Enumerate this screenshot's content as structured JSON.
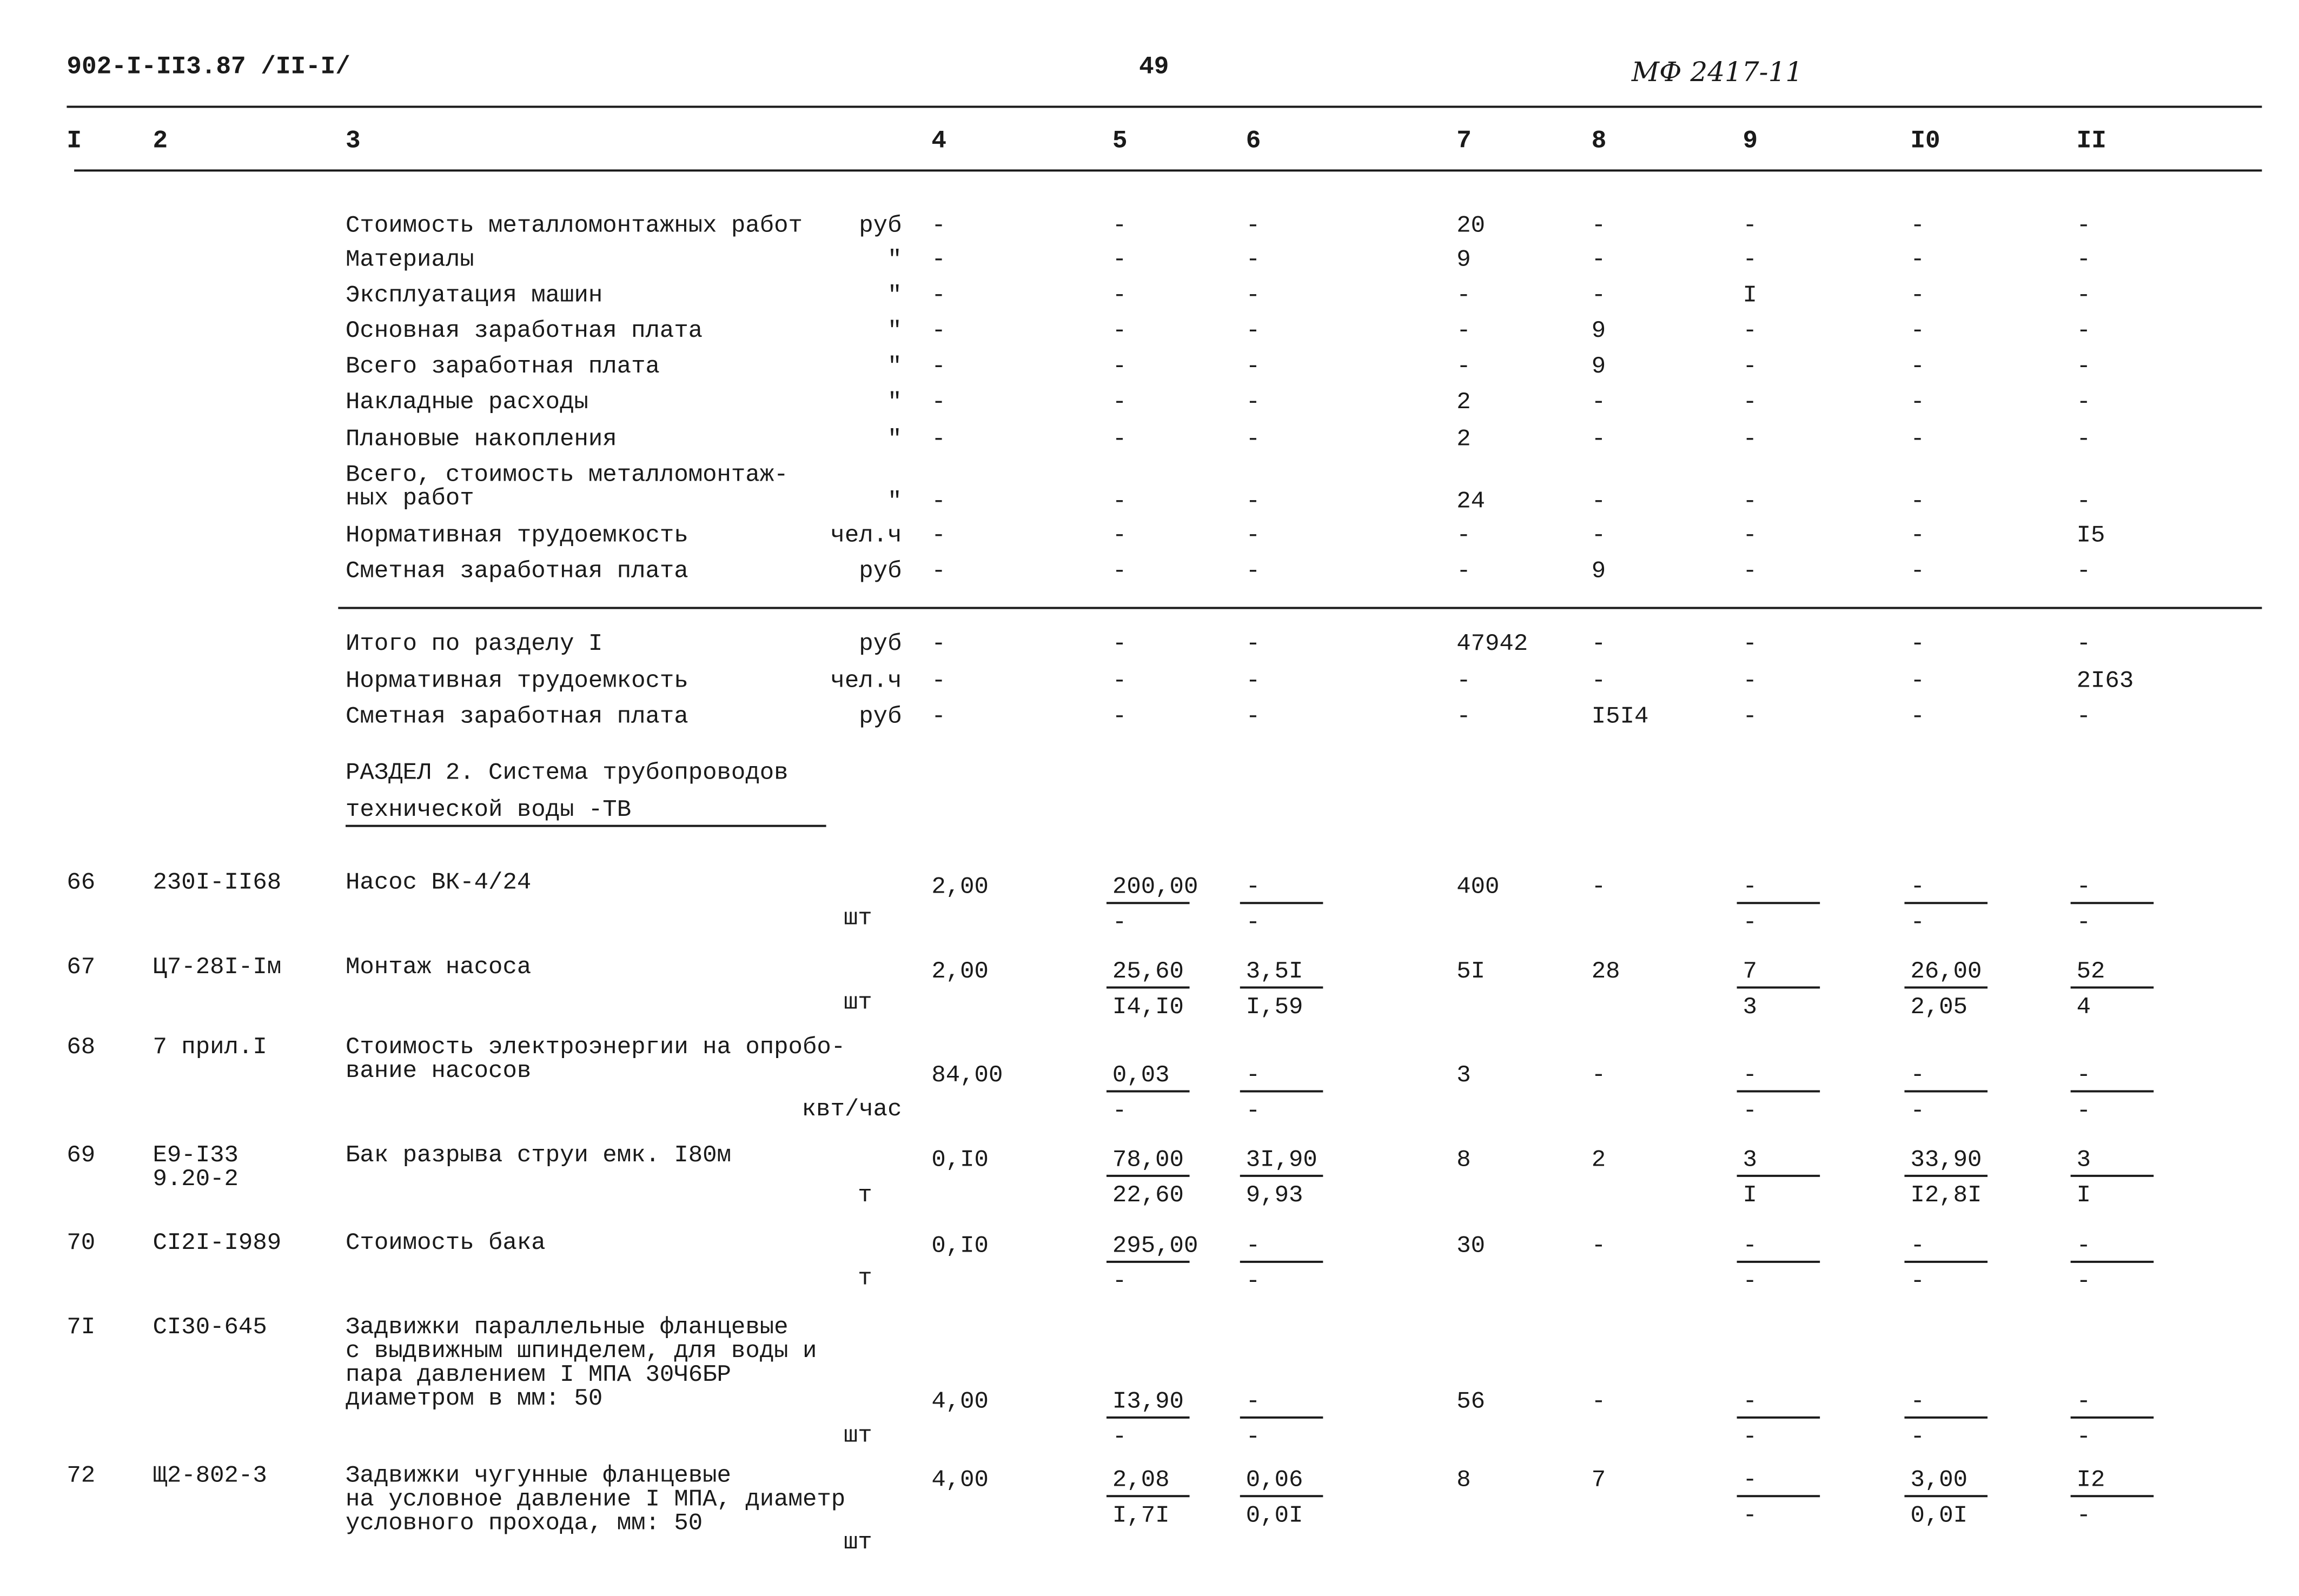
{
  "header": {
    "code": "902-I-II3.87 /II-I/",
    "page": "49",
    "ref": "МФ 2417-11"
  },
  "columns": [
    "I",
    "2",
    "3",
    "4",
    "5",
    "6",
    "7",
    "8",
    "9",
    "I0",
    "II"
  ],
  "summary_rows": [
    {
      "name": [
        "Стоимость металломонтажных работ"
      ],
      "unit": "руб",
      "values": [
        "-",
        "-",
        "-",
        "20",
        "-",
        "-",
        "-",
        "-"
      ]
    },
    {
      "name": [
        "Материалы"
      ],
      "unit": "\"",
      "values": [
        "-",
        "-",
        "-",
        "9",
        "-",
        "-",
        "-",
        "-"
      ]
    },
    {
      "name": [
        "Эксплуатация машин"
      ],
      "unit": "\"",
      "values": [
        "-",
        "-",
        "-",
        "-",
        "-",
        "I",
        "-",
        "-"
      ]
    },
    {
      "name": [
        "Основная заработная плата"
      ],
      "unit": "\"",
      "values": [
        "-",
        "-",
        "-",
        "-",
        "9",
        "-",
        "-",
        "-"
      ]
    },
    {
      "name": [
        "Всего заработная плата"
      ],
      "unit": "\"",
      "values": [
        "-",
        "-",
        "-",
        "-",
        "9",
        "-",
        "-",
        "-"
      ]
    },
    {
      "name": [
        "Накладные расходы"
      ],
      "unit": "\"",
      "values": [
        "-",
        "-",
        "-",
        "2",
        "-",
        "-",
        "-",
        "-"
      ]
    },
    {
      "name": [
        "Плановые накопления"
      ],
      "unit": "\"",
      "values": [
        "-",
        "-",
        "-",
        "2",
        "-",
        "-",
        "-",
        "-"
      ]
    },
    {
      "name": [
        "Всего, стоимость металломонтаж-",
        "ных работ"
      ],
      "unit": "\"",
      "values": [
        "-",
        "-",
        "-",
        "24",
        "-",
        "-",
        "-",
        "-"
      ]
    },
    {
      "name": [
        "Нормативная трудоемкость"
      ],
      "unit": "чел.ч",
      "values": [
        "-",
        "-",
        "-",
        "-",
        "-",
        "-",
        "-",
        "I5"
      ]
    },
    {
      "name": [
        "Сметная заработная плата"
      ],
      "unit": "руб",
      "values": [
        "-",
        "-",
        "-",
        "-",
        "9",
        "-",
        "-",
        "-"
      ]
    }
  ],
  "total_rows": [
    {
      "name": [
        "Итого по разделу I"
      ],
      "unit": "руб",
      "values": [
        "-",
        "-",
        "-",
        "47942",
        "-",
        "-",
        "-",
        "-"
      ]
    },
    {
      "name": [
        "Нормативная трудоемкость"
      ],
      "unit": "чел.ч",
      "values": [
        "-",
        "-",
        "-",
        "-",
        "-",
        "-",
        "-",
        "2I63"
      ]
    },
    {
      "name": [
        "Сметная заработная плата"
      ],
      "unit": "руб",
      "values": [
        "-",
        "-",
        "-",
        "-",
        "I5I4",
        "-",
        "-",
        "-"
      ]
    }
  ],
  "section": {
    "title": "РАЗДЕЛ 2. Система трубопроводов",
    "subtitle": "технической воды -ТВ"
  },
  "items": [
    {
      "num": "66",
      "code": [
        "230I-II68"
      ],
      "name": [
        "Насос ВК-4/24"
      ],
      "unit": "шт",
      "values": [
        "2,00",
        {
          "top": "200,00",
          "bottom": "-"
        },
        {
          "top": "-",
          "bottom": "-"
        },
        "400",
        "-",
        {
          "top": "-",
          "bottom": "-"
        },
        {
          "top": "-",
          "bottom": "-"
        },
        {
          "top": "-",
          "bottom": "-"
        }
      ]
    },
    {
      "num": "67",
      "code": [
        "Ц7-28I-Iм"
      ],
      "name": [
        "Монтаж насоса"
      ],
      "unit": "шт",
      "values": [
        "2,00",
        {
          "top": "25,60",
          "bottom": "I4,I0"
        },
        {
          "top": "3,5I",
          "bottom": "I,59"
        },
        "5I",
        "28",
        {
          "top": "7",
          "bottom": "3"
        },
        {
          "top": "26,00",
          "bottom": "2,05"
        },
        {
          "top": "52",
          "bottom": "4"
        }
      ]
    },
    {
      "num": "68",
      "code": [
        "7 прил.I"
      ],
      "name": [
        "Стоимость электроэнергии на опробо-",
        "вание насосов"
      ],
      "unit": "квт/час",
      "values": [
        "84,00",
        {
          "top": "0,03",
          "bottom": "-"
        },
        {
          "top": "-",
          "bottom": "-"
        },
        "3",
        "-",
        {
          "top": "-",
          "bottom": "-"
        },
        {
          "top": "-",
          "bottom": "-"
        },
        {
          "top": "-",
          "bottom": "-"
        }
      ]
    },
    {
      "num": "69",
      "code": [
        "Е9-I33",
        "9.20-2"
      ],
      "name": [
        "Бак разрыва струи емк. I80м"
      ],
      "unit": "т",
      "values": [
        "0,I0",
        {
          "top": "78,00",
          "bottom": "22,60"
        },
        {
          "top": "3I,90",
          "bottom": "9,93"
        },
        "8",
        "2",
        {
          "top": "3",
          "bottom": "I"
        },
        {
          "top": "33,90",
          "bottom": "I2,8I"
        },
        {
          "top": "3",
          "bottom": "I"
        }
      ]
    },
    {
      "num": "70",
      "code": [
        "СI2I-I989"
      ],
      "name": [
        "Стоимость бака"
      ],
      "unit": "т",
      "values": [
        "0,I0",
        {
          "top": "295,00",
          "bottom": "-"
        },
        {
          "top": "-",
          "bottom": "-"
        },
        "30",
        "-",
        {
          "top": "-",
          "bottom": "-"
        },
        {
          "top": "-",
          "bottom": "-"
        },
        {
          "top": "-",
          "bottom": "-"
        }
      ]
    },
    {
      "num": "7I",
      "code": [
        "СI30-645"
      ],
      "name": [
        "Задвижки параллельные фланцевые",
        "с выдвижным шпинделем, для воды и",
        "пара давлением I МПА 30Ч6БР",
        "диаметром в мм: 50"
      ],
      "unit": "шт",
      "values": [
        "4,00",
        {
          "top": "I3,90",
          "bottom": "-"
        },
        {
          "top": "-",
          "bottom": "-"
        },
        "56",
        "-",
        {
          "top": "-",
          "bottom": "-"
        },
        {
          "top": "-",
          "bottom": "-"
        },
        {
          "top": "-",
          "bottom": "-"
        }
      ]
    },
    {
      "num": "72",
      "code": [
        "Щ2-802-3"
      ],
      "name": [
        "Задвижки чугунные фланцевые",
        "на условное давление I МПА, диаметр",
        "условного прохода, мм: 50"
      ],
      "unit": "шт",
      "values": [
        "4,00",
        {
          "top": "2,08",
          "bottom": "I,7I"
        },
        {
          "top": "0,06",
          "bottom": "0,0I"
        },
        "8",
        "7",
        {
          "top": "-",
          "bottom": "-"
        },
        {
          "top": "3,00",
          "bottom": "0,0I"
        },
        {
          "top": "I2",
          "bottom": "-"
        }
      ]
    }
  ]
}
